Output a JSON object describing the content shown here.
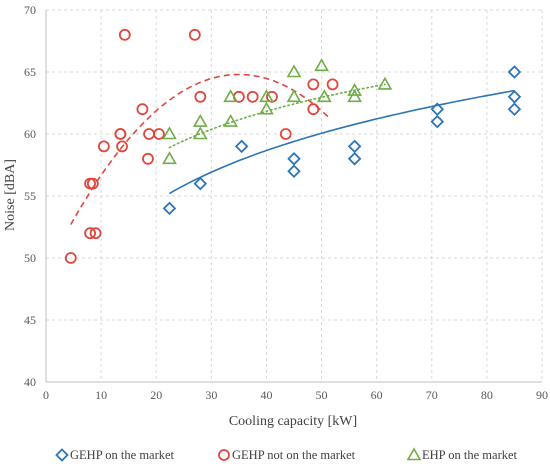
{
  "chart_data": {
    "type": "scatter",
    "title": "",
    "xlabel": "Cooling capacity [kW]",
    "ylabel": "Noise [dBA]",
    "xlim": [
      0,
      90
    ],
    "ylim": [
      40,
      70
    ],
    "xticks": [
      0,
      10,
      20,
      30,
      40,
      50,
      60,
      70,
      80,
      90
    ],
    "yticks": [
      40,
      45,
      50,
      55,
      60,
      65,
      70
    ],
    "grid": "dashed, both axes",
    "legend_position": "bottom",
    "series": [
      {
        "name": "GEHP on the market",
        "marker": "diamond",
        "color": "#2e75b6",
        "points": [
          [
            22.4,
            54
          ],
          [
            28,
            56
          ],
          [
            35.5,
            59
          ],
          [
            45,
            58
          ],
          [
            45,
            57
          ],
          [
            56,
            59
          ],
          [
            56,
            58
          ],
          [
            71,
            62
          ],
          [
            71,
            61
          ],
          [
            85,
            65
          ],
          [
            85,
            63
          ],
          [
            85,
            62
          ]
        ],
        "trendline": {
          "style": "solid",
          "x_range": [
            22.4,
            85
          ],
          "y_range_start": 55.2,
          "y_range_end": 63.5
        }
      },
      {
        "name": "GEHP not on the market",
        "marker": "circle",
        "color": "#e0473e",
        "points": [
          [
            4.5,
            50
          ],
          [
            8,
            56
          ],
          [
            8.5,
            56
          ],
          [
            8,
            52
          ],
          [
            9,
            52
          ],
          [
            10.5,
            59
          ],
          [
            13.5,
            60
          ],
          [
            13.5,
            60
          ],
          [
            13.8,
            59
          ],
          [
            14.3,
            68
          ],
          [
            17.5,
            62
          ],
          [
            18.5,
            58
          ],
          [
            18.7,
            60
          ],
          [
            20.5,
            60
          ],
          [
            27,
            68
          ],
          [
            28,
            63
          ],
          [
            35,
            63
          ],
          [
            37.5,
            63
          ],
          [
            41,
            63
          ],
          [
            43.5,
            60
          ],
          [
            48.5,
            64
          ],
          [
            48.5,
            62
          ],
          [
            52,
            64
          ]
        ],
        "trendline": {
          "style": "dashed",
          "x_range": [
            4.5,
            51.5
          ],
          "peak_x": 35,
          "peak_y": 64.8
        }
      },
      {
        "name": "EHP on the market",
        "marker": "triangle",
        "color": "#70ad47",
        "points": [
          [
            22.4,
            60
          ],
          [
            22.4,
            58
          ],
          [
            28,
            61
          ],
          [
            28,
            60
          ],
          [
            33.5,
            63
          ],
          [
            33.5,
            61
          ],
          [
            40,
            63
          ],
          [
            40,
            62
          ],
          [
            45,
            65
          ],
          [
            45,
            63
          ],
          [
            50,
            65.5
          ],
          [
            50.5,
            63
          ],
          [
            56,
            63.5
          ],
          [
            56,
            63
          ],
          [
            61.5,
            64
          ]
        ],
        "trendline": {
          "style": "dotted",
          "x_range": [
            22.4,
            61.5
          ]
        }
      }
    ]
  }
}
